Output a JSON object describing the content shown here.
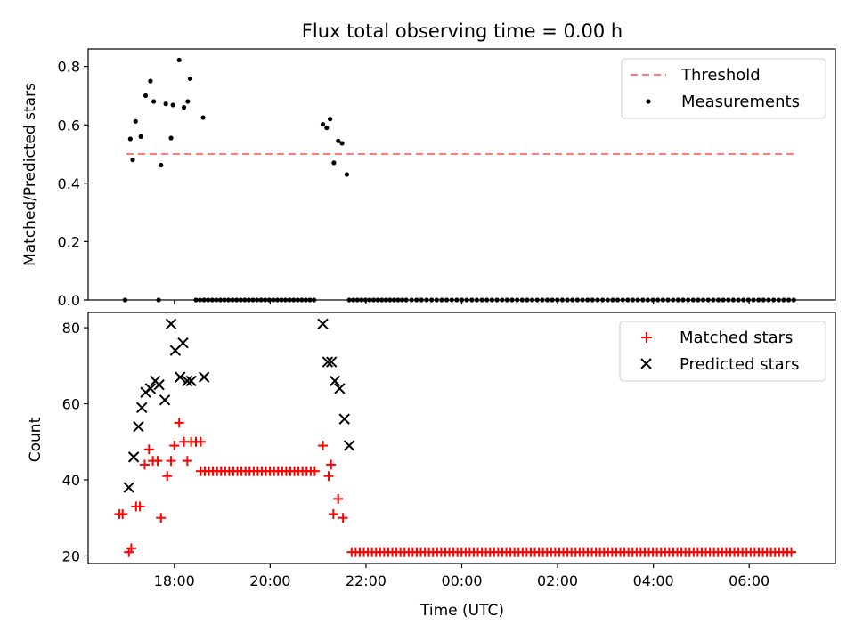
{
  "chart_data": {
    "type": "scatter",
    "title": "Flux total observing time = 0.00 h",
    "xlabel": "Time (UTC)",
    "x_ticks": [
      "18:00",
      "20:00",
      "22:00",
      "00:00",
      "02:00",
      "04:00",
      "06:00"
    ],
    "x_tick_hours": [
      18,
      20,
      22,
      24,
      26,
      28,
      30
    ],
    "xlim": [
      16.2,
      31.8
    ],
    "panels": [
      {
        "ylabel": "Matched/Predicted stars",
        "ylim": [
          0,
          0.86
        ],
        "y_ticks": [
          "0.0",
          "0.2",
          "0.4",
          "0.6",
          "0.8"
        ],
        "y_tick_values": [
          0,
          0.2,
          0.4,
          0.6,
          0.8
        ],
        "legend_position": "upper right",
        "threshold": {
          "name": "Threshold",
          "value": 0.5,
          "x_range": [
            17.0,
            30.99
          ],
          "color": "#ff7a7a"
        },
        "series": [
          {
            "name": "Measurements",
            "marker": "dot",
            "color": "#000000",
            "zero_runs": [
              [
                16.97,
                17.1,
                0.15
              ],
              [
                17.67,
                17.67,
                0.1
              ],
              [
                18.45,
                20.99,
                0.085
              ],
              [
                21.65,
                22.85,
                0.085
              ],
              [
                22.95,
                30.95,
                0.105
              ]
            ],
            "points": [
              [
                17.08,
                0.552
              ],
              [
                17.13,
                0.48
              ],
              [
                17.19,
                0.612
              ],
              [
                17.3,
                0.56
              ],
              [
                17.4,
                0.7
              ],
              [
                17.5,
                0.75
              ],
              [
                17.57,
                0.68
              ],
              [
                17.72,
                0.462
              ],
              [
                17.82,
                0.672
              ],
              [
                17.93,
                0.555
              ],
              [
                17.97,
                0.668
              ],
              [
                18.1,
                0.822
              ],
              [
                18.2,
                0.66
              ],
              [
                18.28,
                0.68
              ],
              [
                18.33,
                0.758
              ],
              [
                18.6,
                0.625
              ],
              [
                21.1,
                0.602
              ],
              [
                21.18,
                0.59
              ],
              [
                21.25,
                0.62
              ],
              [
                21.33,
                0.47
              ],
              [
                21.42,
                0.545
              ],
              [
                21.5,
                0.537
              ],
              [
                21.6,
                0.43
              ]
            ]
          }
        ]
      },
      {
        "ylabel": "Count",
        "ylim": [
          18,
          84
        ],
        "y_ticks": [
          "20",
          "40",
          "60",
          "80"
        ],
        "y_tick_values": [
          20,
          40,
          60,
          80
        ],
        "legend_position": "upper right",
        "series": [
          {
            "name": "Matched stars",
            "marker": "plus",
            "color": "#ff0000",
            "runs": [
              [
                18.55,
                21.0,
                0.085,
                42.3
              ],
              [
                21.7,
                30.95,
                0.085,
                21
              ]
            ],
            "points": [
              [
                16.85,
                31
              ],
              [
                16.92,
                31
              ],
              [
                17.05,
                21
              ],
              [
                17.1,
                22
              ],
              [
                17.2,
                33
              ],
              [
                17.28,
                33
              ],
              [
                17.38,
                44
              ],
              [
                17.47,
                48
              ],
              [
                17.55,
                45
              ],
              [
                17.65,
                45
              ],
              [
                17.72,
                30
              ],
              [
                17.85,
                41
              ],
              [
                17.93,
                45
              ],
              [
                18.0,
                49
              ],
              [
                18.1,
                55
              ],
              [
                18.2,
                50
              ],
              [
                18.27,
                45
              ],
              [
                18.35,
                50
              ],
              [
                18.45,
                50
              ],
              [
                18.55,
                50
              ],
              [
                21.1,
                49
              ],
              [
                21.22,
                41
              ],
              [
                21.27,
                44
              ],
              [
                21.32,
                31
              ],
              [
                21.42,
                35
              ],
              [
                21.52,
                30
              ]
            ]
          },
          {
            "name": "Predicted stars",
            "marker": "x",
            "color": "#000000",
            "points": [
              [
                17.05,
                38
              ],
              [
                17.15,
                46
              ],
              [
                17.25,
                54
              ],
              [
                17.32,
                59
              ],
              [
                17.4,
                63
              ],
              [
                17.5,
                64
              ],
              [
                17.6,
                66
              ],
              [
                17.68,
                65
              ],
              [
                17.8,
                61
              ],
              [
                17.93,
                81
              ],
              [
                18.02,
                74
              ],
              [
                18.12,
                67
              ],
              [
                18.18,
                76
              ],
              [
                18.27,
                66
              ],
              [
                18.35,
                66
              ],
              [
                18.62,
                67
              ],
              [
                21.1,
                81
              ],
              [
                21.2,
                71
              ],
              [
                21.28,
                71
              ],
              [
                21.35,
                66
              ],
              [
                21.45,
                64
              ],
              [
                21.55,
                56
              ],
              [
                21.65,
                49
              ]
            ]
          }
        ]
      }
    ]
  }
}
